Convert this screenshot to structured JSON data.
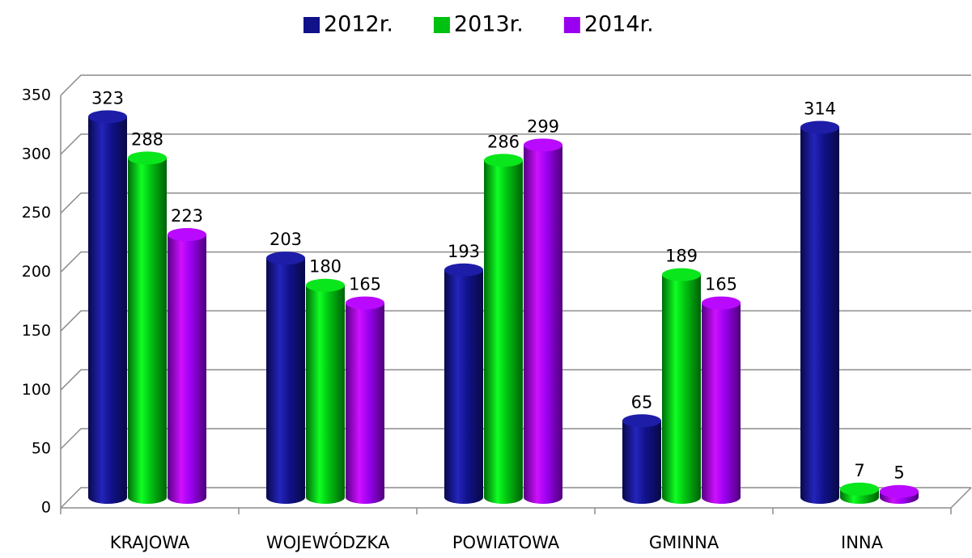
{
  "chart_data": {
    "type": "bar",
    "categories": [
      "KRAJOWA",
      "WOJEWÓDZKA",
      "POWIATOWA",
      "GMINNA",
      "INNA"
    ],
    "series": [
      {
        "name": "2012r.",
        "color": "#11118a",
        "values": [
          323,
          203,
          193,
          65,
          314
        ]
      },
      {
        "name": "2013r.",
        "color": "#00c010",
        "values": [
          288,
          180,
          286,
          189,
          7
        ]
      },
      {
        "name": "2014r.",
        "color": "#9a00f0",
        "values": [
          223,
          165,
          299,
          165,
          5
        ]
      }
    ],
    "ylim": [
      0,
      350
    ],
    "yticks": [
      0,
      50,
      100,
      150,
      200,
      250,
      300,
      350
    ],
    "grid": true,
    "legend": "top"
  }
}
